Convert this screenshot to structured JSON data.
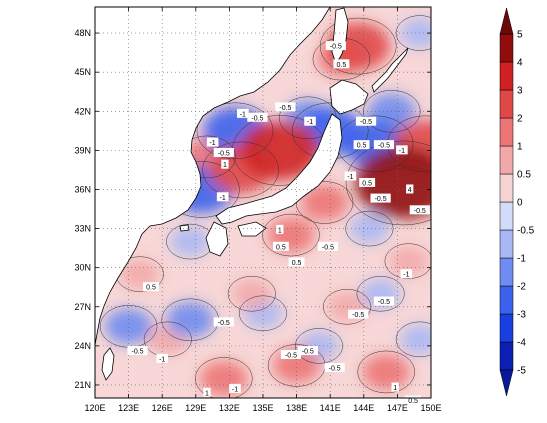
{
  "map": {
    "lon_ticks": [
      "120E",
      "123E",
      "126E",
      "129E",
      "132E",
      "135E",
      "138E",
      "141E",
      "144E",
      "147E",
      "150E"
    ],
    "lat_ticks": [
      "21N",
      "24N",
      "27N",
      "30N",
      "33N",
      "36N",
      "39N",
      "42N",
      "45N",
      "48N"
    ],
    "lon_range": [
      120,
      150
    ],
    "lat_range": [
      20,
      50
    ],
    "grid": "dotted",
    "coastline_color": "#000000"
  },
  "colorbar": {
    "levels": [
      "-5",
      "-4",
      "-3",
      "-2",
      "-1",
      "-0.5",
      "0",
      "0.5",
      "1",
      "2",
      "3",
      "4",
      "5"
    ],
    "colors": [
      "#0b1fb3",
      "#1a3fe0",
      "#3a62ec",
      "#6f8cf0",
      "#a8b8f4",
      "#d2dbf8",
      "#f6d3d3",
      "#f2a8a8",
      "#ec7676",
      "#e04848",
      "#cf2121",
      "#8f0d0d"
    ],
    "extend": "both"
  },
  "anomaly_fields": {
    "positive": [
      {
        "lon": 147.5,
        "lat": 36.5,
        "level": 4
      },
      {
        "lon": 133.0,
        "lat": 37.5,
        "level": 2
      },
      {
        "lon": 136.5,
        "lat": 39.0,
        "level": 3
      },
      {
        "lon": 143.5,
        "lat": 47.0,
        "level": 2
      },
      {
        "lon": 142.0,
        "lat": 46.0,
        "level": 1
      },
      {
        "lon": 130.0,
        "lat": 38.5,
        "level": 1
      },
      {
        "lon": 137.5,
        "lat": 32.5,
        "level": 1
      },
      {
        "lon": 138.0,
        "lat": 22.5,
        "level": 1
      },
      {
        "lon": 146.0,
        "lat": 22.0,
        "level": 1
      },
      {
        "lon": 131.5,
        "lat": 21.5,
        "level": 1
      },
      {
        "lon": 149.5,
        "lat": 39.5,
        "level": 2
      },
      {
        "lon": 126.5,
        "lat": 24.5,
        "level": 0.5
      },
      {
        "lon": 134.0,
        "lat": 28.0,
        "level": 0.5
      },
      {
        "lon": 142.5,
        "lat": 27.0,
        "level": 0.5
      },
      {
        "lon": 148.0,
        "lat": 30.5,
        "level": 0.5
      },
      {
        "lon": 140.5,
        "lat": 35.0,
        "level": 1
      },
      {
        "lon": 124.0,
        "lat": 29.5,
        "level": 0.5
      }
    ],
    "negative": [
      {
        "lon": 141.0,
        "lat": 40.5,
        "level": -2
      },
      {
        "lon": 145.0,
        "lat": 39.5,
        "level": -2
      },
      {
        "lon": 132.5,
        "lat": 40.5,
        "level": -2
      },
      {
        "lon": 129.5,
        "lat": 36.0,
        "level": -2
      },
      {
        "lon": 146.5,
        "lat": 42.0,
        "level": -1
      },
      {
        "lon": 139.0,
        "lat": 41.5,
        "level": -1
      },
      {
        "lon": 123.0,
        "lat": 25.5,
        "level": -1
      },
      {
        "lon": 128.5,
        "lat": 26.0,
        "level": -1
      },
      {
        "lon": 140.0,
        "lat": 24.0,
        "level": -0.5
      },
      {
        "lon": 145.5,
        "lat": 28.0,
        "level": -0.5
      },
      {
        "lon": 135.0,
        "lat": 26.5,
        "level": -0.5
      },
      {
        "lon": 144.5,
        "lat": 33.0,
        "level": -0.5
      },
      {
        "lon": 149.0,
        "lat": 24.5,
        "level": -0.5
      },
      {
        "lon": 128.5,
        "lat": 32.0,
        "level": -0.5
      },
      {
        "lon": 149.0,
        "lat": 48.0,
        "level": -0.5
      }
    ]
  },
  "contour_labels": [
    {
      "text": "-0.5",
      "lon": 141.5,
      "lat": 47.0
    },
    {
      "text": "0.5",
      "lon": 142.0,
      "lat": 45.6
    },
    {
      "text": "-0.5",
      "lon": 137.0,
      "lat": 42.3
    },
    {
      "text": "-1",
      "lon": 133.2,
      "lat": 41.8
    },
    {
      "text": "-0.5",
      "lon": 134.5,
      "lat": 41.5
    },
    {
      "text": "-1",
      "lon": 139.2,
      "lat": 41.2
    },
    {
      "text": "-1",
      "lon": 130.5,
      "lat": 39.6
    },
    {
      "text": "-0.5",
      "lon": 131.5,
      "lat": 38.8
    },
    {
      "text": "-0.5",
      "lon": 144.2,
      "lat": 41.2
    },
    {
      "text": "0.5",
      "lon": 143.8,
      "lat": 39.4
    },
    {
      "text": "-0.5",
      "lon": 145.8,
      "lat": 39.4
    },
    {
      "text": "-1",
      "lon": 147.4,
      "lat": 39.0
    },
    {
      "text": "-1",
      "lon": 142.8,
      "lat": 37.0
    },
    {
      "text": "0.5",
      "lon": 144.3,
      "lat": 36.5
    },
    {
      "text": "4",
      "lon": 148.1,
      "lat": 36.0
    },
    {
      "text": "-0.5",
      "lon": 145.5,
      "lat": 35.3
    },
    {
      "text": "-0.5",
      "lon": 149.0,
      "lat": 34.4
    },
    {
      "text": "-1",
      "lon": 131.4,
      "lat": 35.4
    },
    {
      "text": "1",
      "lon": 131.6,
      "lat": 37.9
    },
    {
      "text": "-0.5",
      "lon": 140.8,
      "lat": 31.6
    },
    {
      "text": "0.5",
      "lon": 138.0,
      "lat": 30.4
    },
    {
      "text": "0.5",
      "lon": 125.0,
      "lat": 28.5
    },
    {
      "text": "-0.5",
      "lon": 131.5,
      "lat": 25.8
    },
    {
      "text": "-0.5",
      "lon": 139.0,
      "lat": 23.6
    },
    {
      "text": "-0.5",
      "lon": 137.5,
      "lat": 23.3
    },
    {
      "text": "-0.5",
      "lon": 141.4,
      "lat": 22.3
    },
    {
      "text": "-0.5",
      "lon": 143.5,
      "lat": 26.4
    },
    {
      "text": "-0.5",
      "lon": 145.8,
      "lat": 27.4
    },
    {
      "text": "-1",
      "lon": 147.8,
      "lat": 29.5
    },
    {
      "text": "-1",
      "lon": 126.0,
      "lat": 23.0
    },
    {
      "text": "1",
      "lon": 130.0,
      "lat": 20.4
    },
    {
      "text": "-1",
      "lon": 132.5,
      "lat": 20.7
    },
    {
      "text": "1",
      "lon": 146.8,
      "lat": 20.8
    },
    {
      "text": "0.5",
      "lon": 148.4,
      "lat": 19.8
    },
    {
      "text": "1",
      "lon": 136.5,
      "lat": 32.9
    },
    {
      "text": "0.5",
      "lon": 136.6,
      "lat": 31.6
    },
    {
      "text": "-0.5",
      "lon": 123.8,
      "lat": 23.6
    }
  ]
}
